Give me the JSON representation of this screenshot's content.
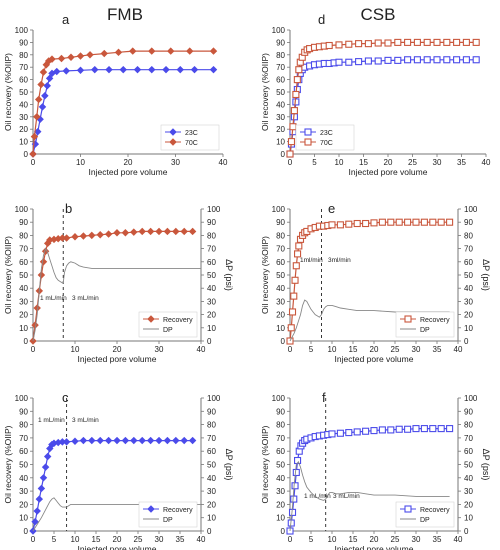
{
  "headers": {
    "left": "FMB",
    "right": "CSB"
  },
  "colors": {
    "c23": "#4b4bea",
    "c70": "#c9573c",
    "recovery_red": "#c9573c",
    "recovery_blue": "#4b4bea",
    "dp": "#888888",
    "axis": "#777777"
  },
  "chart_data": [
    {
      "panel": "a",
      "type": "line",
      "marker": "diamond",
      "xlabel": "Injected pore volume",
      "ylabel": "Oil recovery (%OIIP)",
      "xlim": [
        0,
        40
      ],
      "ylim": [
        0,
        100
      ],
      "xticks": [
        0,
        10,
        20,
        30,
        40
      ],
      "yticks": [
        0,
        10,
        20,
        30,
        40,
        50,
        60,
        70,
        80,
        90,
        100
      ],
      "legend": "bottom-right",
      "series": [
        {
          "name": "23C",
          "color_key": "c23",
          "x": [
            0,
            0.5,
            1,
            1.5,
            2,
            2.5,
            3,
            3.5,
            4,
            5,
            7,
            10,
            13,
            16,
            19,
            22,
            25,
            28,
            31,
            34,
            38
          ],
          "y": [
            0,
            8,
            18,
            28,
            38,
            47,
            55,
            61,
            65,
            66.5,
            67,
            67.5,
            68,
            68,
            68,
            68,
            68,
            68,
            68,
            68,
            68
          ]
        },
        {
          "name": "70C",
          "color_key": "c70",
          "x": [
            0,
            0.3,
            0.8,
            1.2,
            1.7,
            2.2,
            2.8,
            3.3,
            4,
            6,
            8,
            10,
            12,
            15,
            18,
            21,
            25,
            29,
            33,
            38
          ],
          "y": [
            0,
            14,
            30,
            44,
            56,
            66,
            72,
            75,
            76.5,
            77,
            78,
            79,
            80,
            81,
            82,
            83,
            83,
            83,
            83,
            83
          ]
        }
      ]
    },
    {
      "panel": "b",
      "type": "line",
      "marker": "diamond",
      "xlabel": "Injected pore volume",
      "ylabel": "Oil recovery (%OIIP)",
      "y2label": "ΔP (psi)",
      "xlim": [
        0,
        40
      ],
      "ylim": [
        0,
        100
      ],
      "y2lim": [
        0,
        100
      ],
      "xticks": [
        0,
        10,
        20,
        30,
        40
      ],
      "yticks": [
        0,
        10,
        20,
        30,
        40,
        50,
        60,
        70,
        80,
        90,
        100
      ],
      "y2ticks": [
        0,
        10,
        20,
        30,
        40,
        50,
        60,
        70,
        80,
        90,
        100
      ],
      "legend": "bottom-right",
      "vline_x": 7.2,
      "annotations": [
        "1 mL/min",
        "3 mL/min"
      ],
      "series": [
        {
          "name": "Recovery",
          "color_key": "recovery_red",
          "axis": "left",
          "x": [
            0,
            0.5,
            1,
            1.5,
            2,
            2.5,
            3,
            3.5,
            4,
            5,
            6,
            7,
            8,
            10,
            12,
            14,
            16,
            18,
            20,
            22,
            24,
            26,
            28,
            30,
            32,
            34,
            36,
            38
          ],
          "y": [
            0,
            12,
            25,
            38,
            50,
            60,
            68,
            74,
            76.5,
            77,
            77.5,
            78,
            78,
            79,
            79.5,
            80,
            80.5,
            81,
            82,
            82,
            82.5,
            83,
            83,
            83,
            83,
            83,
            83,
            83
          ]
        },
        {
          "name": "DP",
          "color_key": "dp",
          "axis": "right",
          "x": [
            0,
            0.5,
            1,
            1.5,
            2,
            2.5,
            3,
            3.5,
            4,
            4.5,
            5,
            5.5,
            6,
            6.5,
            7,
            7.2,
            7.5,
            8,
            8.5,
            9,
            10,
            11,
            12,
            14,
            16,
            20,
            24,
            28,
            32,
            36,
            40
          ],
          "y": [
            0,
            8,
            20,
            38,
            55,
            65,
            70,
            67,
            62,
            57,
            52,
            48,
            46,
            45,
            44,
            44,
            52,
            57,
            59,
            60,
            59,
            57,
            56,
            55,
            55,
            55,
            55,
            55,
            55,
            55,
            55
          ]
        }
      ]
    },
    {
      "panel": "c",
      "type": "line",
      "marker": "diamond",
      "xlabel": "Injected pore volume",
      "ylabel": "Oil recovery (%OIIP)",
      "y2label": "ΔP (psi)",
      "xlim": [
        0,
        40
      ],
      "ylim": [
        0,
        100
      ],
      "y2lim": [
        0,
        100
      ],
      "xticks": [
        0,
        5,
        10,
        15,
        20,
        25,
        30,
        35,
        40
      ],
      "yticks": [
        0,
        10,
        20,
        30,
        40,
        50,
        60,
        70,
        80,
        90,
        100
      ],
      "y2ticks": [
        0,
        10,
        20,
        30,
        40,
        50,
        60,
        70,
        80,
        90,
        100
      ],
      "legend": "bottom-right",
      "vline_x": 8,
      "annotations": [
        "1 mL/min",
        "3 mL/min"
      ],
      "series": [
        {
          "name": "Recovery",
          "color_key": "recovery_blue",
          "axis": "left",
          "x": [
            0,
            0.5,
            1,
            1.5,
            2,
            2.5,
            3,
            3.5,
            4,
            4.5,
            5,
            6,
            7,
            8,
            10,
            12,
            14,
            16,
            18,
            20,
            22,
            24,
            26,
            28,
            30,
            32,
            34,
            36,
            38
          ],
          "y": [
            0,
            7,
            15,
            24,
            32,
            40,
            48,
            56,
            62,
            65,
            66,
            66.5,
            67,
            67,
            67.5,
            68,
            68,
            68,
            68,
            68,
            68,
            68,
            68,
            68,
            68,
            68,
            68,
            68,
            68
          ]
        },
        {
          "name": "DP",
          "color_key": "dp",
          "axis": "right",
          "x": [
            0,
            1,
            2,
            3,
            4,
            4.5,
            5,
            5.5,
            6,
            6.5,
            7,
            7.5,
            8,
            8.5,
            9,
            10,
            12,
            15,
            20,
            25,
            30,
            35,
            40
          ],
          "y": [
            0,
            5,
            10,
            16,
            22,
            24,
            25,
            23,
            21,
            19,
            18,
            18,
            18,
            19,
            20,
            20,
            20,
            20,
            20,
            20,
            20,
            20,
            20
          ]
        }
      ]
    },
    {
      "panel": "d",
      "type": "line",
      "marker": "square",
      "xlabel": "Injected pore volume",
      "ylabel": "Oil recovery (%OIIP)",
      "xlim": [
        0,
        40
      ],
      "ylim": [
        0,
        100
      ],
      "xticks": [
        0,
        5,
        10,
        15,
        20,
        25,
        30,
        35,
        40
      ],
      "yticks": [
        0,
        10,
        20,
        30,
        40,
        50,
        60,
        70,
        80,
        90,
        100
      ],
      "legend": "bottom-left",
      "series": [
        {
          "name": "23C",
          "color_key": "c23",
          "x": [
            0,
            0.3,
            0.6,
            0.9,
            1.2,
            1.5,
            1.8,
            2.1,
            2.5,
            3,
            4,
            5,
            6,
            7,
            8,
            9,
            10,
            12,
            14,
            16,
            18,
            20,
            22,
            24,
            26,
            28,
            30,
            32,
            34,
            36,
            38
          ],
          "y": [
            0,
            8,
            18,
            30,
            42,
            52,
            60,
            65,
            68,
            70,
            71,
            72,
            72.5,
            73,
            73,
            73.5,
            74,
            74,
            74.5,
            75,
            75,
            75.5,
            75.5,
            76,
            76,
            76,
            76,
            76,
            76,
            76,
            76
          ]
        },
        {
          "name": "70C",
          "color_key": "c70",
          "x": [
            0,
            0.3,
            0.6,
            0.9,
            1.2,
            1.5,
            1.8,
            2.1,
            2.5,
            3,
            3.5,
            4,
            5,
            6,
            7,
            8,
            10,
            12,
            14,
            16,
            18,
            20,
            22,
            24,
            26,
            28,
            30,
            32,
            34,
            36,
            38
          ],
          "y": [
            0,
            10,
            22,
            35,
            48,
            60,
            68,
            74,
            78,
            82,
            84,
            85,
            86,
            86.5,
            87,
            87.5,
            88,
            88.5,
            89,
            89,
            89.5,
            89.5,
            90,
            90,
            90,
            90,
            90,
            90,
            90,
            90,
            90
          ]
        }
      ]
    },
    {
      "panel": "e",
      "type": "line",
      "marker": "square",
      "xlabel": "Injected pore volume",
      "ylabel": "Oil recovery (%OIIP)",
      "y2label": "ΔP (psi)",
      "xlim": [
        0,
        40
      ],
      "ylim": [
        0,
        100
      ],
      "y2lim": [
        0,
        100
      ],
      "xticks": [
        0,
        5,
        10,
        15,
        20,
        25,
        30,
        35,
        40
      ],
      "yticks": [
        0,
        10,
        20,
        30,
        40,
        50,
        60,
        70,
        80,
        90,
        100
      ],
      "y2ticks": [
        0,
        10,
        20,
        30,
        40,
        50,
        60,
        70,
        80,
        90,
        100
      ],
      "legend": "bottom-right",
      "vline_x": 7.5,
      "annotations": [
        "1ml/min",
        "3ml/min"
      ],
      "series": [
        {
          "name": "Recovery",
          "color_key": "recovery_red",
          "axis": "left",
          "x": [
            0,
            0.3,
            0.6,
            0.9,
            1.2,
            1.5,
            1.8,
            2.1,
            2.5,
            3,
            3.5,
            4,
            5,
            6,
            7,
            8,
            9,
            10,
            12,
            14,
            16,
            18,
            20,
            22,
            24,
            26,
            28,
            30,
            32,
            34,
            36,
            38
          ],
          "y": [
            0,
            10,
            22,
            34,
            46,
            57,
            66,
            72,
            77,
            80,
            82,
            83,
            85,
            86,
            87,
            87,
            87.5,
            88,
            88,
            88.5,
            89,
            89,
            89.5,
            90,
            90,
            90,
            90,
            90,
            90,
            90,
            90,
            90
          ]
        },
        {
          "name": "DP",
          "color_key": "dp",
          "axis": "right",
          "x": [
            0,
            0.5,
            1,
            1.5,
            2,
            2.5,
            3,
            3.5,
            4,
            4.5,
            5,
            5.5,
            6,
            6.5,
            7,
            7.5,
            8,
            8.5,
            9,
            10,
            11,
            12,
            14,
            16,
            20,
            25,
            30,
            35,
            38
          ],
          "y": [
            0,
            3,
            6,
            10,
            15,
            20,
            27,
            31,
            30,
            27,
            24,
            22,
            20,
            19,
            18,
            20,
            24,
            26,
            27,
            27,
            26,
            25,
            24,
            23,
            23,
            22,
            22,
            22,
            22
          ]
        }
      ]
    },
    {
      "panel": "f",
      "type": "line",
      "marker": "square",
      "xlabel": "Injected pore volume",
      "ylabel": "Oil recovery (%OIIP)",
      "y2label": "ΔP (psi)",
      "xlim": [
        0,
        40
      ],
      "ylim": [
        0,
        100
      ],
      "y2lim": [
        0,
        100
      ],
      "xticks": [
        0,
        5,
        10,
        15,
        20,
        25,
        30,
        35,
        40
      ],
      "yticks": [
        0,
        10,
        20,
        30,
        40,
        50,
        60,
        70,
        80,
        90,
        100
      ],
      "y2ticks": [
        0,
        10,
        20,
        30,
        40,
        50,
        60,
        70,
        80,
        90,
        100
      ],
      "legend": "bottom-right",
      "vline_x": 8.5,
      "annotations": [
        "1 mL/min",
        "3 mL/min"
      ],
      "series": [
        {
          "name": "Recovery",
          "color_key": "recovery_blue",
          "axis": "left",
          "x": [
            0,
            0.3,
            0.6,
            0.9,
            1.2,
            1.5,
            1.8,
            2.2,
            2.6,
            3,
            3.5,
            4,
            5,
            6,
            7,
            8,
            9,
            10,
            12,
            14,
            16,
            18,
            20,
            22,
            24,
            26,
            28,
            30,
            32,
            34,
            36,
            38
          ],
          "y": [
            0,
            6,
            14,
            24,
            34,
            44,
            53,
            60,
            64,
            66,
            68,
            69,
            70,
            71,
            71.5,
            72,
            72.5,
            73,
            73.5,
            74,
            74.5,
            75,
            75.5,
            76,
            76,
            76.5,
            76.5,
            77,
            77,
            77,
            77,
            77
          ]
        },
        {
          "name": "DP",
          "color_key": "dp",
          "axis": "right",
          "x": [
            0,
            0.5,
            1,
            1.5,
            2,
            2.5,
            3,
            3.5,
            4,
            5,
            6,
            7,
            8,
            8.5,
            9,
            9.5,
            10,
            11,
            12,
            14,
            16,
            18,
            20,
            25,
            30,
            35,
            38
          ],
          "y": [
            0,
            15,
            35,
            50,
            52,
            48,
            42,
            37,
            33,
            29,
            26,
            24,
            23,
            24,
            27,
            29,
            29,
            28,
            28,
            29,
            29,
            28,
            27,
            27,
            26,
            26,
            26
          ]
        }
      ]
    }
  ]
}
